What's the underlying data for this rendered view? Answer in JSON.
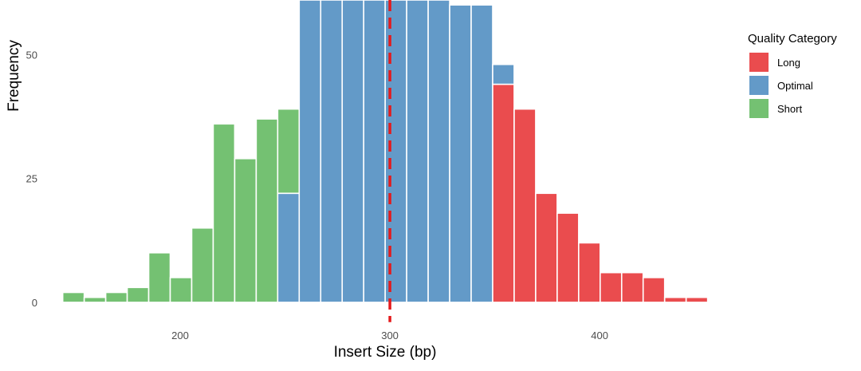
{
  "chart_data": {
    "type": "histogram",
    "xlabel": "Insert Size (bp)",
    "ylabel": "Frequency",
    "xlim": [
      135,
      460
    ],
    "ylim": [
      -5,
      61
    ],
    "x_ticks": [
      200,
      300,
      400
    ],
    "y_ticks": [
      0,
      25,
      50
    ],
    "bin_width": 10.25,
    "bin_start": 144,
    "reference_line": {
      "x": 300,
      "style": "dashed",
      "color": "#E41A1C"
    },
    "colors": {
      "Long": "#E41A1C",
      "Optimal": "#377EB8",
      "Short": "#4DAF4A"
    },
    "legend": {
      "title": "Quality Category",
      "entries": [
        "Long",
        "Optimal",
        "Short"
      ]
    },
    "series": [
      {
        "name": "Short",
        "values": [
          2,
          1,
          2,
          3,
          10,
          5,
          15,
          36,
          29,
          37,
          17,
          0,
          0,
          0,
          0,
          0,
          0,
          0,
          0,
          0,
          0,
          0,
          0,
          0,
          0,
          0,
          0,
          0,
          0,
          0,
          0
        ]
      },
      {
        "name": "Optimal",
        "values": [
          0,
          0,
          0,
          0,
          0,
          0,
          0,
          0,
          0,
          0,
          22,
          61,
          61,
          61,
          61,
          61,
          61,
          61,
          60,
          60,
          4,
          0,
          0,
          0,
          0,
          0,
          0,
          0,
          0,
          0,
          0
        ]
      },
      {
        "name": "Long",
        "values": [
          0,
          0,
          0,
          0,
          0,
          0,
          0,
          0,
          0,
          0,
          0,
          0,
          0,
          0,
          0,
          0,
          0,
          0,
          0,
          0,
          44,
          39,
          22,
          18,
          12,
          6,
          6,
          5,
          1,
          1,
          0
        ]
      }
    ]
  }
}
